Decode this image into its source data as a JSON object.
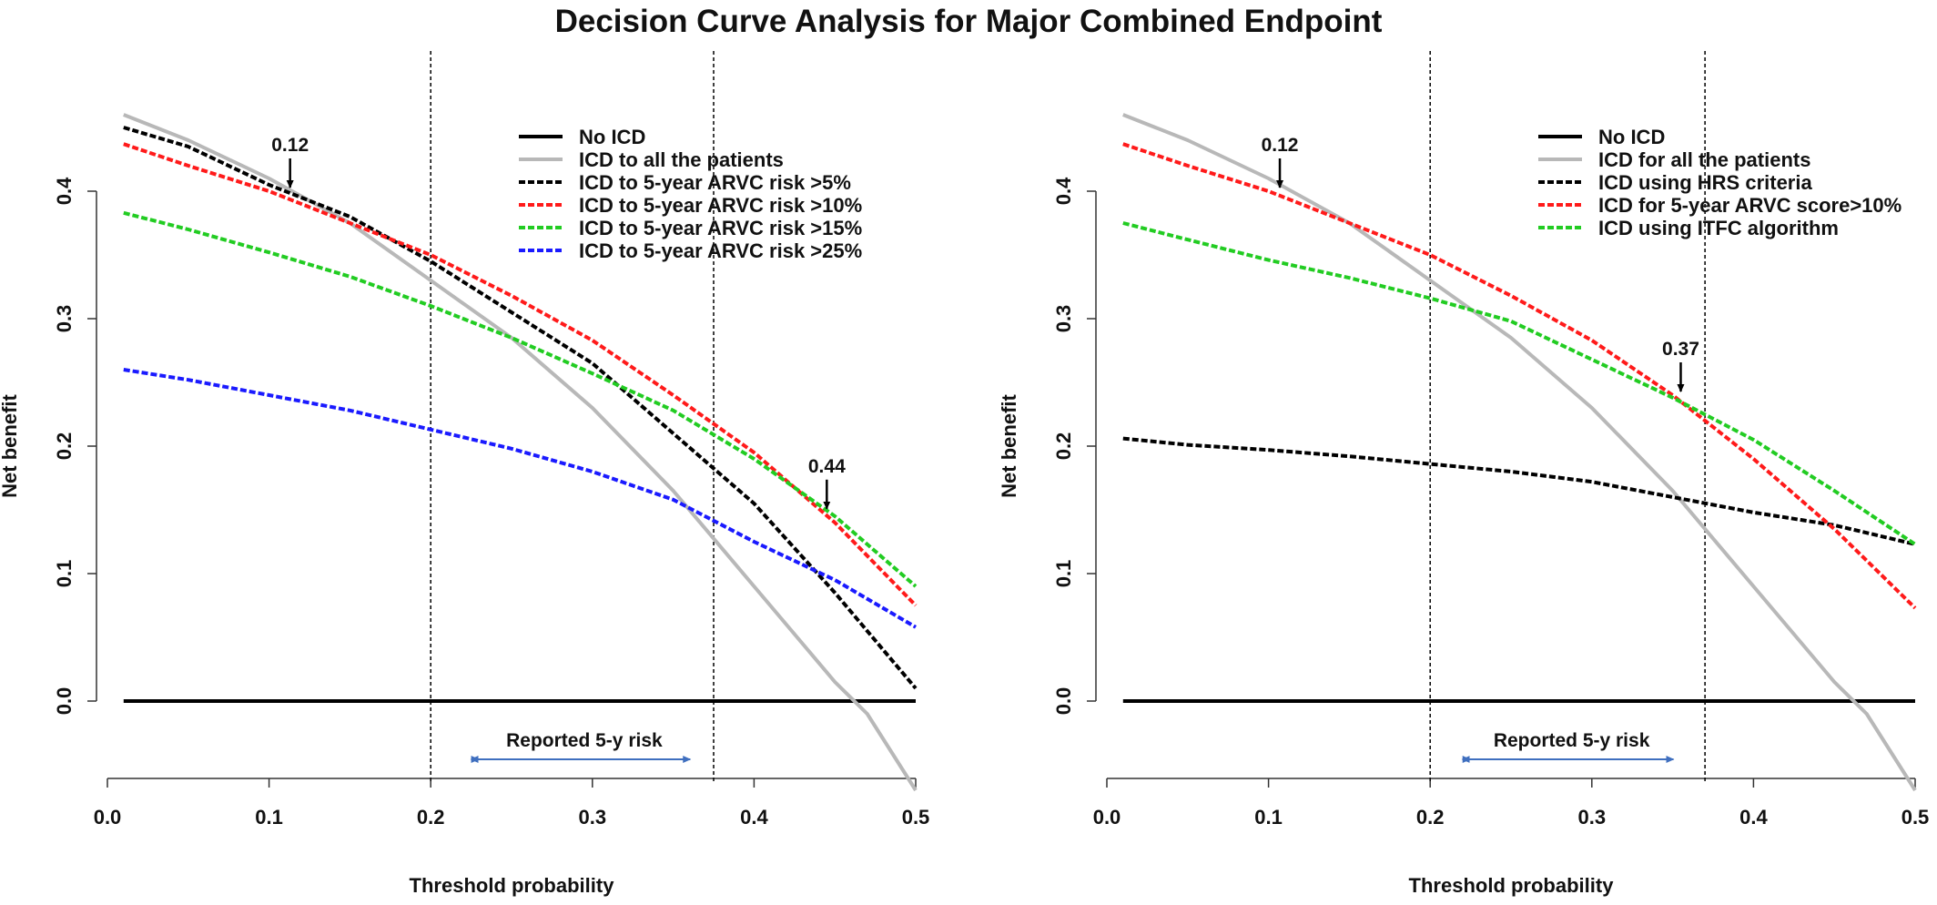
{
  "title": "Decision Curve Analysis for Major Combined Endpoint",
  "colors": {
    "no_icd": "#000000",
    "all": "#b8b8b8",
    "black_dash": "#000000",
    "red": "#ff1a1a",
    "green": "#22cc22",
    "blue": "#1a1aff",
    "range_arrow": "#3f6fbf"
  },
  "chart_data": [
    {
      "type": "line",
      "xlabel": "Threshold probability",
      "ylabel": "Net benefit",
      "xlim": [
        0.0,
        0.5
      ],
      "ylim": [
        -0.07,
        0.45
      ],
      "xticks": [
        "0.0",
        "0.1",
        "0.2",
        "0.3",
        "0.4",
        "0.5"
      ],
      "yticks": [
        "0.0",
        "0.1",
        "0.2",
        "0.3",
        "0.4"
      ],
      "legend_position": "top-right",
      "series": [
        {
          "name": "No ICD",
          "style": "solid",
          "color_key": "no_icd",
          "x": [
            0.01,
            0.5
          ],
          "y": [
            0.0,
            0.0
          ]
        },
        {
          "name": "ICD to all the patients",
          "style": "solid",
          "color_key": "all",
          "x": [
            0.01,
            0.05,
            0.1,
            0.15,
            0.2,
            0.25,
            0.3,
            0.35,
            0.4,
            0.45,
            0.47,
            0.5
          ],
          "y": [
            0.46,
            0.44,
            0.41,
            0.375,
            0.33,
            0.285,
            0.23,
            0.165,
            0.09,
            0.015,
            -0.01,
            -0.07
          ]
        },
        {
          "name": "ICD to 5-year ARVC risk >5%",
          "style": "dashed",
          "color_key": "black_dash",
          "x": [
            0.01,
            0.05,
            0.1,
            0.15,
            0.2,
            0.25,
            0.3,
            0.35,
            0.4,
            0.45,
            0.5
          ],
          "y": [
            0.45,
            0.435,
            0.405,
            0.38,
            0.345,
            0.305,
            0.265,
            0.21,
            0.155,
            0.085,
            0.01
          ]
        },
        {
          "name": "ICD to 5-year ARVC risk >10%",
          "style": "dashed",
          "color_key": "red",
          "x": [
            0.01,
            0.05,
            0.1,
            0.15,
            0.2,
            0.25,
            0.3,
            0.35,
            0.4,
            0.45,
            0.5
          ],
          "y": [
            0.437,
            0.42,
            0.4,
            0.375,
            0.35,
            0.318,
            0.283,
            0.24,
            0.195,
            0.14,
            0.075
          ]
        },
        {
          "name": "ICD to 5-year ARVC risk >15%",
          "style": "dashed",
          "color_key": "green",
          "x": [
            0.01,
            0.05,
            0.1,
            0.15,
            0.2,
            0.25,
            0.3,
            0.35,
            0.4,
            0.45,
            0.5
          ],
          "y": [
            0.383,
            0.37,
            0.352,
            0.333,
            0.31,
            0.285,
            0.257,
            0.228,
            0.19,
            0.145,
            0.09
          ]
        },
        {
          "name": "ICD to 5-year ARVC risk >25%",
          "style": "dashed",
          "color_key": "blue",
          "x": [
            0.01,
            0.05,
            0.1,
            0.15,
            0.2,
            0.25,
            0.3,
            0.35,
            0.4,
            0.45,
            0.5
          ],
          "y": [
            0.26,
            0.252,
            0.24,
            0.228,
            0.213,
            0.198,
            0.18,
            0.158,
            0.125,
            0.095,
            0.058
          ]
        }
      ],
      "vlines": [
        0.2,
        0.375
      ],
      "annotations": [
        {
          "label": "0.12",
          "x": 0.113,
          "y": 0.4
        },
        {
          "label": "0.44",
          "x": 0.445,
          "y": 0.148
        }
      ],
      "range_arrow": {
        "label": "Reported 5-y risk",
        "x_start": 0.225,
        "x_end": 0.365,
        "y": -0.045
      }
    },
    {
      "type": "line",
      "xlabel": "Threshold probability",
      "ylabel": "Net benefit",
      "xlim": [
        0.0,
        0.5
      ],
      "ylim": [
        -0.07,
        0.45
      ],
      "xticks": [
        "0.0",
        "0.1",
        "0.2",
        "0.3",
        "0.4",
        "0.5"
      ],
      "yticks": [
        "0.0",
        "0.1",
        "0.2",
        "0.3",
        "0.4"
      ],
      "legend_position": "top-right",
      "series": [
        {
          "name": "No ICD",
          "style": "solid",
          "color_key": "no_icd",
          "x": [
            0.01,
            0.5
          ],
          "y": [
            0.0,
            0.0
          ]
        },
        {
          "name": "ICD for all the patients",
          "style": "solid",
          "color_key": "all",
          "x": [
            0.01,
            0.05,
            0.1,
            0.15,
            0.2,
            0.25,
            0.3,
            0.35,
            0.4,
            0.45,
            0.47,
            0.5
          ],
          "y": [
            0.46,
            0.44,
            0.41,
            0.375,
            0.33,
            0.285,
            0.23,
            0.165,
            0.09,
            0.015,
            -0.01,
            -0.07
          ]
        },
        {
          "name": "ICD using HRS criteria",
          "style": "dashed",
          "color_key": "black_dash",
          "x": [
            0.01,
            0.05,
            0.1,
            0.15,
            0.2,
            0.25,
            0.3,
            0.35,
            0.4,
            0.45,
            0.5
          ],
          "y": [
            0.206,
            0.201,
            0.197,
            0.192,
            0.186,
            0.18,
            0.172,
            0.16,
            0.148,
            0.138,
            0.123
          ]
        },
        {
          "name": "ICD for 5-year ARVC score>10%",
          "style": "dashed",
          "color_key": "red",
          "x": [
            0.01,
            0.05,
            0.1,
            0.15,
            0.2,
            0.25,
            0.3,
            0.35,
            0.4,
            0.45,
            0.5
          ],
          "y": [
            0.437,
            0.42,
            0.4,
            0.375,
            0.35,
            0.318,
            0.283,
            0.24,
            0.19,
            0.135,
            0.073
          ]
        },
        {
          "name": "ICD using ITFC algorithm",
          "style": "dashed",
          "color_key": "green",
          "x": [
            0.01,
            0.05,
            0.1,
            0.15,
            0.2,
            0.25,
            0.3,
            0.35,
            0.4,
            0.45,
            0.5
          ],
          "y": [
            0.375,
            0.362,
            0.346,
            0.332,
            0.316,
            0.298,
            0.268,
            0.238,
            0.205,
            0.165,
            0.123
          ]
        }
      ],
      "vlines": [
        0.2,
        0.37
      ],
      "annotations": [
        {
          "label": "0.12",
          "x": 0.107,
          "y": 0.4
        },
        {
          "label": "0.37",
          "x": 0.355,
          "y": 0.24
        }
      ],
      "range_arrow": {
        "label": "Reported 5-y risk",
        "x_start": 0.22,
        "x_end": 0.355,
        "y": -0.045
      }
    }
  ]
}
